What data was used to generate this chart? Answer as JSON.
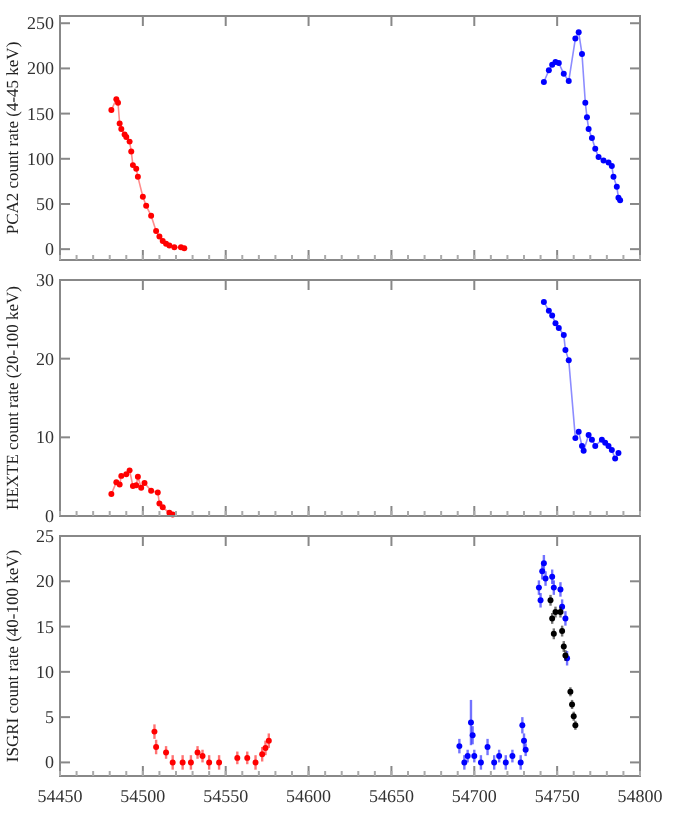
{
  "chart_data": [
    {
      "type": "line",
      "ylabel": "PCA2 count rate (4-45 keV)",
      "xlim": [
        54450,
        54800
      ],
      "xticks": [
        54450,
        54500,
        54550,
        54600,
        54650,
        54700,
        54750,
        54800
      ],
      "ylim": [
        -12,
        258
      ],
      "yticks": [
        0,
        50,
        100,
        150,
        200,
        250
      ],
      "tick_labels": "y",
      "marker": "circle",
      "series": [
        {
          "color": "#ff0000",
          "x": [
            54481,
            54484,
            54485,
            54486,
            54487,
            54489,
            54490,
            54492,
            54493,
            54494,
            54496,
            54497,
            54500,
            54502,
            54505,
            54508,
            54510,
            54512,
            54514,
            54516,
            54519,
            54523,
            54525
          ],
          "values": [
            154,
            166,
            162,
            139,
            133,
            127,
            124,
            119,
            108,
            93,
            89,
            80,
            58,
            48,
            37,
            20,
            14,
            9,
            6,
            4,
            2,
            2,
            1
          ]
        },
        {
          "color": "#0000ff",
          "x": [
            54742,
            54745,
            54747,
            54749,
            54751,
            54754,
            54757,
            54761,
            54763,
            54765,
            54767,
            54768,
            54769,
            54771,
            54773,
            54775,
            54778,
            54781,
            54783,
            54784,
            54786,
            54787,
            54788
          ],
          "values": [
            185,
            198,
            204,
            207,
            206,
            194,
            186,
            233,
            240,
            216,
            162,
            146,
            133,
            123,
            111,
            102,
            98,
            96,
            92,
            80,
            69,
            57,
            54
          ]
        }
      ]
    },
    {
      "type": "line",
      "ylabel": "HEXTE count rate (20-100 keV)",
      "xlim": [
        54450,
        54800
      ],
      "xticks": [
        54450,
        54500,
        54550,
        54600,
        54650,
        54700,
        54750,
        54800
      ],
      "ylim": [
        0,
        30
      ],
      "yticks": [
        0,
        10,
        20,
        30
      ],
      "tick_labels": "y",
      "marker": "circle",
      "series": [
        {
          "color": "#ff0000",
          "x": [
            54481,
            54484,
            54486,
            54487,
            54490,
            54492,
            54494,
            54496,
            54497,
            54499,
            54501,
            54505,
            54509,
            54510,
            54512,
            54516,
            54518
          ],
          "values": [
            2.8,
            4.3,
            4.0,
            5.1,
            5.3,
            5.8,
            3.8,
            3.9,
            5.0,
            3.6,
            4.2,
            3.2,
            3.0,
            1.6,
            1.1,
            0.4,
            0.2
          ]
        },
        {
          "color": "#0000ff",
          "x": [
            54742,
            54745,
            54747,
            54749,
            54751,
            54754,
            54755,
            54757,
            54761,
            54763,
            54765,
            54766,
            54769,
            54771,
            54773,
            54777,
            54779,
            54781,
            54783,
            54785,
            54787
          ],
          "values": [
            27.2,
            26.1,
            25.5,
            24.5,
            23.9,
            23.0,
            21.1,
            19.8,
            9.9,
            10.7,
            8.9,
            8.3,
            10.3,
            9.7,
            8.9,
            9.7,
            9.3,
            8.9,
            8.4,
            7.3,
            8.0
          ]
        }
      ]
    },
    {
      "type": "scatter",
      "ylabel": "ISGRI count rate (40-100 keV)",
      "xlim": [
        54450,
        54800
      ],
      "xticks": [
        54450,
        54500,
        54550,
        54600,
        54650,
        54700,
        54750,
        54800
      ],
      "ylim": [
        -1.5,
        25
      ],
      "yticks": [
        0,
        5,
        10,
        15,
        20,
        25
      ],
      "marker": "circle",
      "series": [
        {
          "color": "#ff0000",
          "x": [
            54507,
            54508,
            54514,
            54518,
            54524,
            54529,
            54533,
            54536,
            54540,
            54546,
            54557,
            54563,
            54568,
            54572,
            54574,
            54576
          ],
          "values": [
            3.4,
            1.7,
            1.1,
            0,
            0,
            0,
            1.1,
            0.7,
            0,
            0,
            0.5,
            0.5,
            0,
            0.9,
            1.6,
            2.4
          ],
          "errors": [
            0.8,
            0.8,
            0.7,
            0.8,
            0.8,
            0.8,
            0.7,
            0.7,
            0.8,
            0.8,
            0.7,
            0.7,
            0.8,
            0.8,
            0.8,
            0.8
          ]
        },
        {
          "color": "#0000ff",
          "x": [
            54691,
            54694,
            54696,
            54698,
            54699,
            54700,
            54704,
            54708,
            54712,
            54715,
            54719,
            54723,
            54728,
            54729,
            54730,
            54731,
            54739,
            54740,
            54741,
            54742,
            54743,
            54747,
            54748,
            54752,
            54753,
            54755,
            54756
          ],
          "values": [
            1.8,
            0,
            0.7,
            4.4,
            3.0,
            0.7,
            0,
            1.7,
            0,
            0.7,
            0,
            0.7,
            0,
            4.1,
            2.4,
            1.4,
            19.3,
            17.9,
            21.1,
            22.0,
            20.3,
            20.5,
            19.3,
            19.1,
            17.2,
            15.9,
            11.5
          ],
          "errors": [
            0.8,
            0.8,
            0.7,
            2.5,
            1,
            0.7,
            0.8,
            0.9,
            0.8,
            0.7,
            0.8,
            0.7,
            0.8,
            0.9,
            0.8,
            0.7,
            0.8,
            0.8,
            0.9,
            0.9,
            0.8,
            0.8,
            0.8,
            0.8,
            0.8,
            0.8,
            0.8
          ]
        },
        {
          "color": "#000000",
          "x": [
            54746,
            54747,
            54748,
            54749,
            54752,
            54753,
            54754,
            54755,
            54758,
            54759,
            54760,
            54761
          ],
          "values": [
            17.9,
            15.9,
            14.2,
            16.6,
            16.6,
            14.5,
            12.8,
            11.8,
            7.8,
            6.4,
            5.1,
            4.1
          ],
          "errors": [
            0.6,
            0.6,
            0.6,
            0.6,
            0.6,
            0.6,
            0.6,
            0.6,
            0.5,
            0.5,
            0.5,
            0.5
          ]
        }
      ]
    }
  ]
}
